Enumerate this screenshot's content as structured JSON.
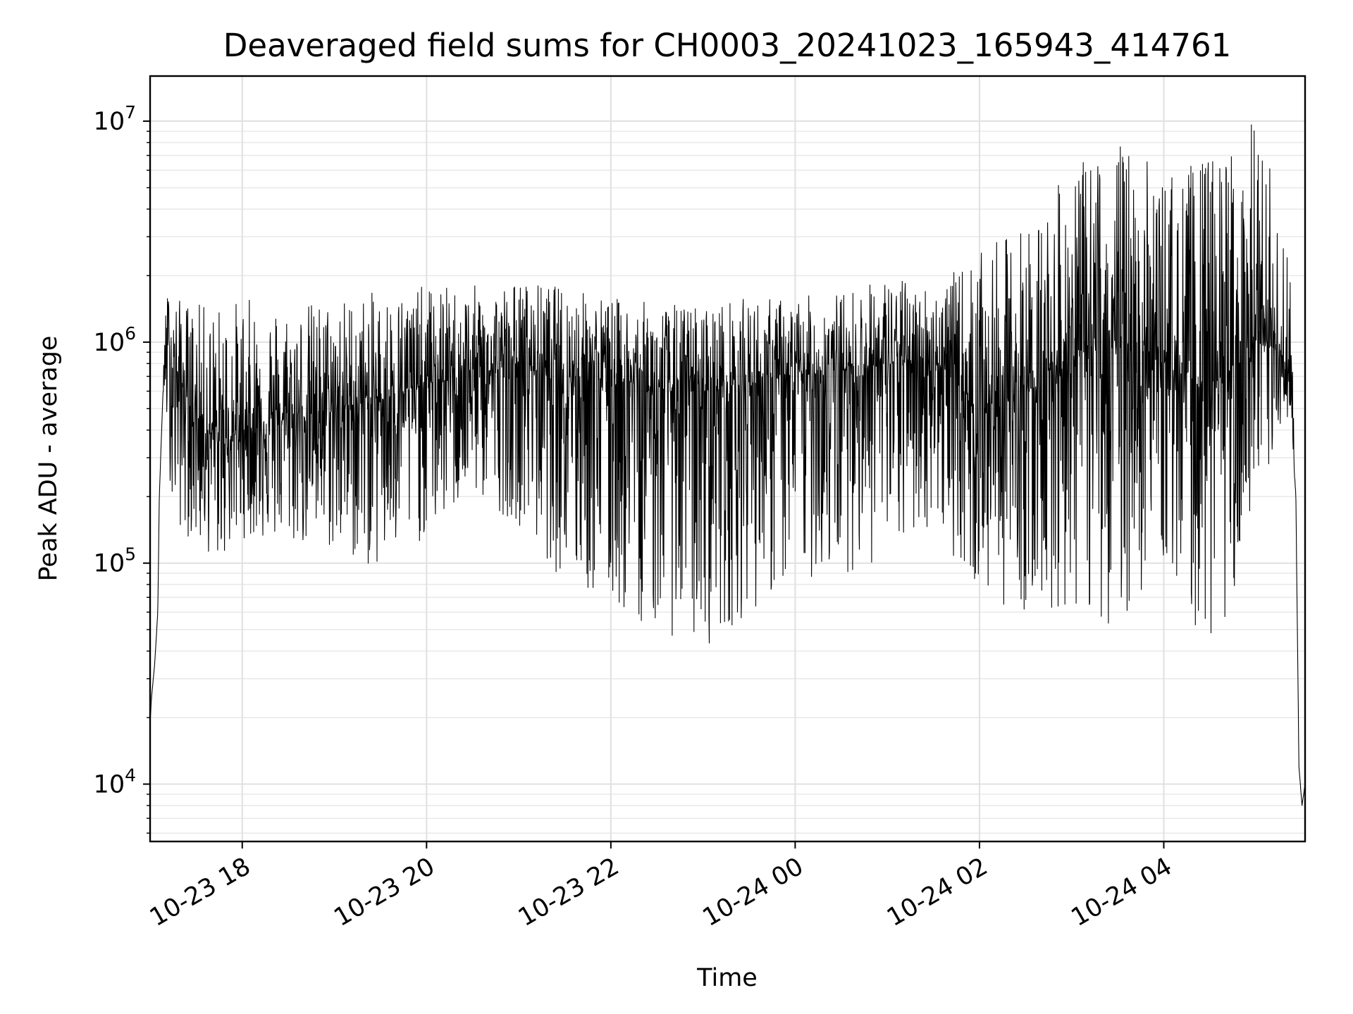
{
  "chart_data": {
    "type": "line",
    "title": "Deaveraged field sums for CH0003_20241023_165943_414761",
    "xlabel": "Time",
    "ylabel": "Peak ADU - average",
    "yscale": "log",
    "ylim": [
      5500,
      16000000
    ],
    "xlim": [
      "2024-10-23 17:00",
      "2024-10-24 05:32"
    ],
    "grid": true,
    "line_color": "#000000",
    "x_ticks": [
      "10-23 18",
      "10-23 20",
      "10-23 22",
      "10-24 00",
      "10-24 02",
      "10-24 04"
    ],
    "x_tick_values": [
      "2024-10-23 18:00",
      "2024-10-23 20:00",
      "2024-10-23 22:00",
      "2024-10-24 00:00",
      "2024-10-24 02:00",
      "2024-10-24 04:00"
    ],
    "y_ticks": [
      {
        "value": 10000,
        "base": "10",
        "exp": "4"
      },
      {
        "value": 100000,
        "base": "10",
        "exp": "5"
      },
      {
        "value": 1000000,
        "base": "10",
        "exp": "6"
      },
      {
        "value": 10000000,
        "base": "10",
        "exp": "7"
      }
    ],
    "series": [
      {
        "x": [
          "2024-10-23 17:00",
          "2024-10-23 17:01",
          "2024-10-23 17:03",
          "2024-10-23 17:05",
          "2024-10-23 17:06",
          "2024-10-23 17:08",
          "2024-10-23 17:10",
          "2024-10-23 17:12",
          "2024-10-23 17:15",
          "2024-10-23 17:30",
          "2024-10-23 17:45",
          "2024-10-23 18:00",
          "2024-10-23 18:30",
          "2024-10-23 19:00",
          "2024-10-23 19:30",
          "2024-10-23 20:00",
          "2024-10-23 20:30",
          "2024-10-23 21:00",
          "2024-10-23 21:30",
          "2024-10-23 22:00",
          "2024-10-23 22:30",
          "2024-10-23 23:00",
          "2024-10-23 23:30",
          "2024-10-24 00:00",
          "2024-10-24 00:30",
          "2024-10-24 01:00",
          "2024-10-24 01:30",
          "2024-10-24 02:00",
          "2024-10-24 02:30",
          "2024-10-24 03:00",
          "2024-10-24 03:30",
          "2024-10-24 04:00",
          "2024-10-24 04:30",
          "2024-10-24 05:00",
          "2024-10-24 05:15",
          "2024-10-24 05:22",
          "2024-10-24 05:26",
          "2024-10-24 05:28",
          "2024-10-24 05:30",
          "2024-10-24 05:32"
        ],
        "y": [
          19000,
          25000,
          35000,
          60000,
          200000,
          500000,
          1000000,
          900000,
          800000,
          450000,
          350000,
          400000,
          450000,
          500000,
          550000,
          650000,
          700000,
          800000,
          750000,
          700000,
          600000,
          600000,
          650000,
          700000,
          750000,
          800000,
          850000,
          500000,
          600000,
          900000,
          1000000,
          800000,
          600000,
          1000000,
          900000,
          700000,
          200000,
          12000,
          8000,
          10000
        ],
        "min_envelope": [
          19000,
          25000,
          35000,
          60000,
          200000,
          500000,
          500000,
          300000,
          150000,
          120000,
          100000,
          130000,
          120000,
          110000,
          90000,
          130000,
          200000,
          150000,
          80000,
          60000,
          50000,
          40000,
          60000,
          80000,
          90000,
          100000,
          150000,
          70000,
          60000,
          60000,
          50000,
          100000,
          38000,
          120000,
          300000,
          500000,
          200000,
          12000,
          8000,
          10000
        ],
        "max_envelope": [
          19000,
          25000,
          35000,
          60000,
          200000,
          500000,
          1500000,
          1800000,
          1600000,
          1500000,
          1500000,
          1600000,
          1500000,
          1600000,
          1700000,
          1800000,
          1800000,
          1900000,
          1800000,
          1600000,
          1500000,
          1500000,
          1600000,
          1600000,
          1700000,
          2000000,
          1800000,
          2500000,
          3500000,
          6000000,
          8500000,
          6000000,
          7000000,
          10500000,
          4500000,
          2500000,
          200000,
          12000,
          8000,
          10000
        ]
      }
    ]
  }
}
